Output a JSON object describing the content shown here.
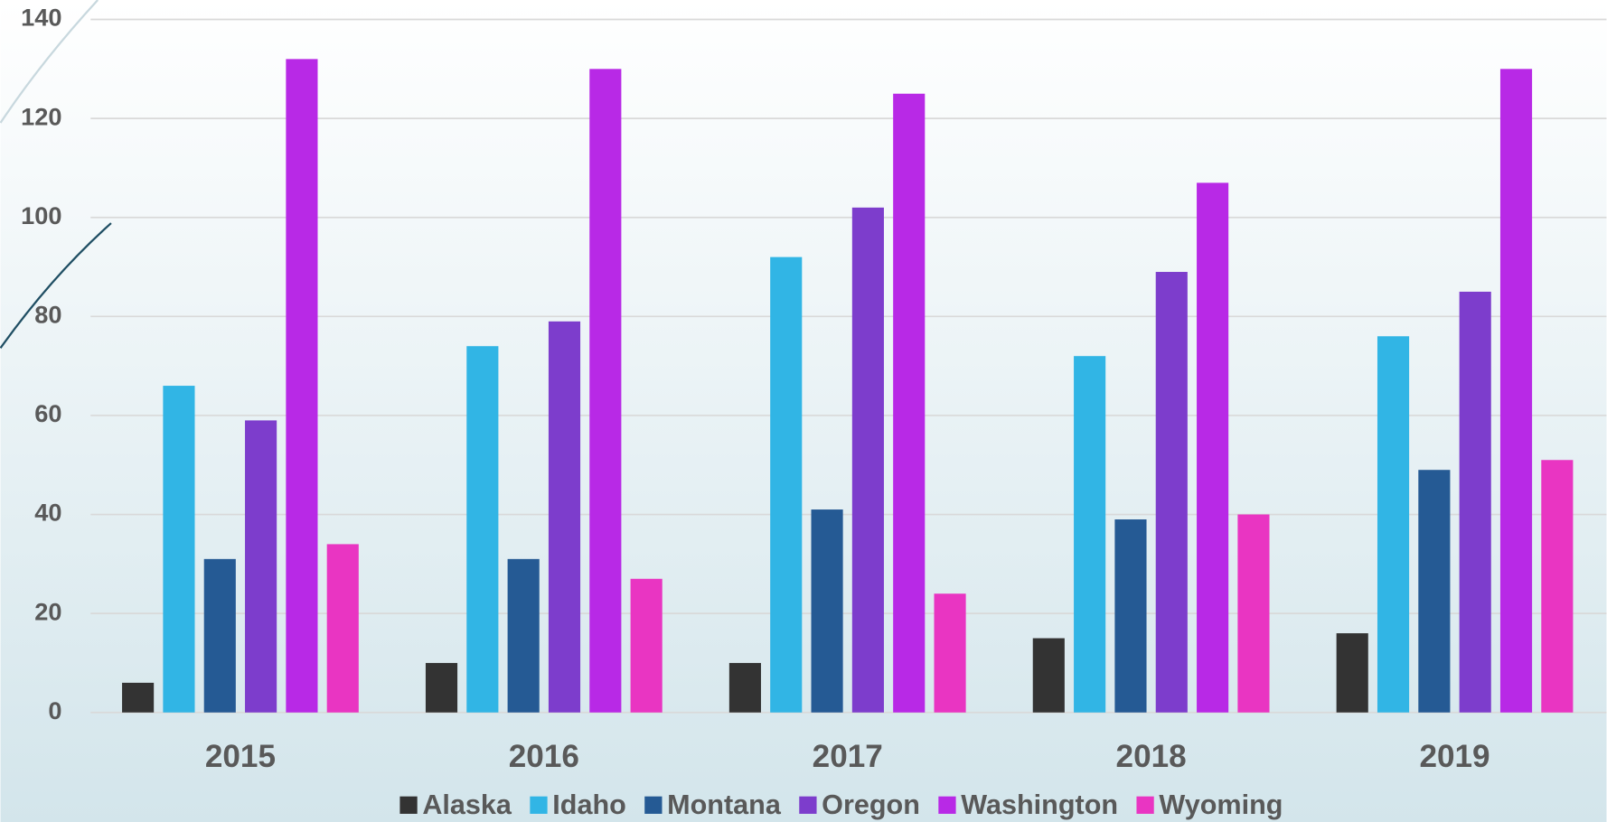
{
  "chart_data": {
    "type": "bar",
    "categories": [
      "2015",
      "2016",
      "2017",
      "2018",
      "2019"
    ],
    "series": [
      {
        "name": "Alaska",
        "color": "#333333",
        "values": [
          6,
          10,
          10,
          15,
          16
        ]
      },
      {
        "name": "Idaho",
        "color": "#31b5e5",
        "values": [
          66,
          74,
          92,
          72,
          76
        ]
      },
      {
        "name": "Montana",
        "color": "#255a94",
        "values": [
          31,
          31,
          41,
          39,
          49
        ]
      },
      {
        "name": "Oregon",
        "color": "#7d3dcc",
        "values": [
          59,
          79,
          102,
          89,
          85
        ]
      },
      {
        "name": "Washington",
        "color": "#b829e6",
        "values": [
          132,
          130,
          125,
          107,
          130
        ]
      },
      {
        "name": "Wyoming",
        "color": "#e935c2",
        "values": [
          34,
          27,
          24,
          40,
          51
        ]
      }
    ],
    "ylim": [
      0,
      140
    ],
    "yticks": [
      0,
      20,
      40,
      60,
      80,
      100,
      120,
      140
    ],
    "grid": true,
    "legend": "bottom"
  }
}
